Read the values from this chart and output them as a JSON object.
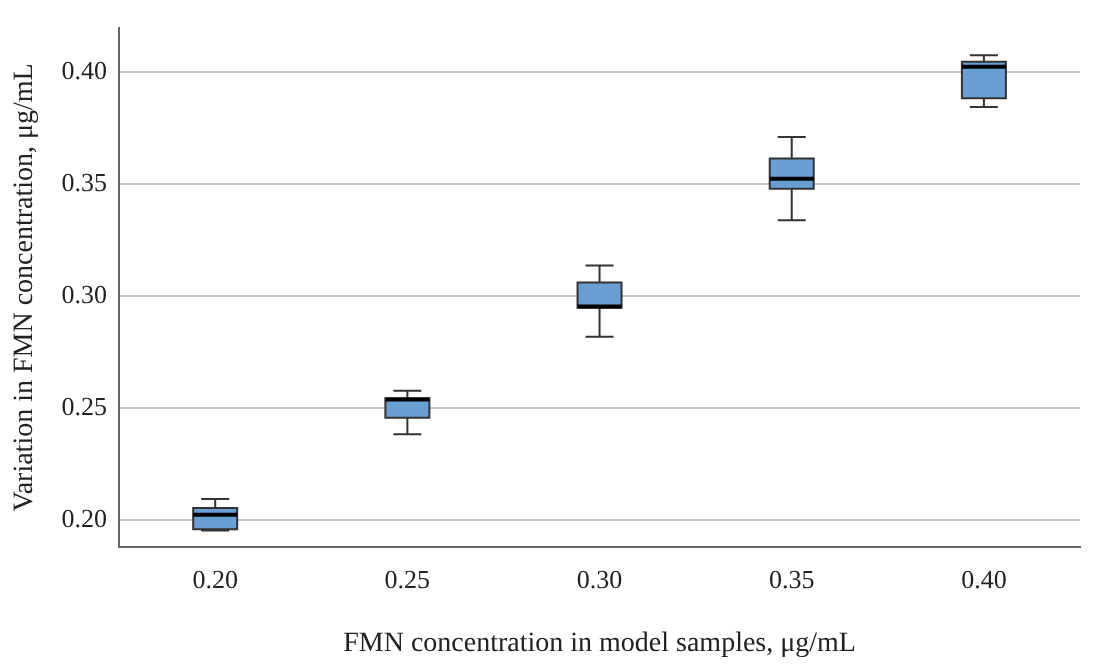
{
  "chart_data": {
    "type": "box",
    "xlabel": "FMN concentration in model samples, μg/mL",
    "ylabel": "Variation in FMN concentration, μg/mL",
    "categories": [
      "0.20",
      "0.25",
      "0.30",
      "0.35",
      "0.40"
    ],
    "color": "#6a9fd4",
    "boxes": [
      {
        "low": 0.1955,
        "q1": 0.196,
        "median": 0.2025,
        "q3": 0.2055,
        "high": 0.2095
      },
      {
        "low": 0.2384,
        "q1": 0.2458,
        "median": 0.254,
        "q3": 0.2545,
        "high": 0.2578
      },
      {
        "low": 0.282,
        "q1": 0.2949,
        "median": 0.2955,
        "q3": 0.3062,
        "high": 0.3138
      },
      {
        "low": 0.334,
        "q1": 0.348,
        "median": 0.3525,
        "q3": 0.3616,
        "high": 0.3711
      },
      {
        "low": 0.3846,
        "q1": 0.3885,
        "median": 0.4025,
        "q3": 0.4048,
        "high": 0.4076
      }
    ],
    "ylim": [
      0.188,
      0.42
    ],
    "yticks": [
      {
        "value": 0.2,
        "label": "0.20"
      },
      {
        "value": 0.25,
        "label": "0.25"
      },
      {
        "value": 0.3,
        "label": "0.30"
      },
      {
        "value": 0.35,
        "label": "0.35"
      },
      {
        "value": 0.4,
        "label": "0.40"
      }
    ],
    "grid": "y",
    "legend": false
  }
}
